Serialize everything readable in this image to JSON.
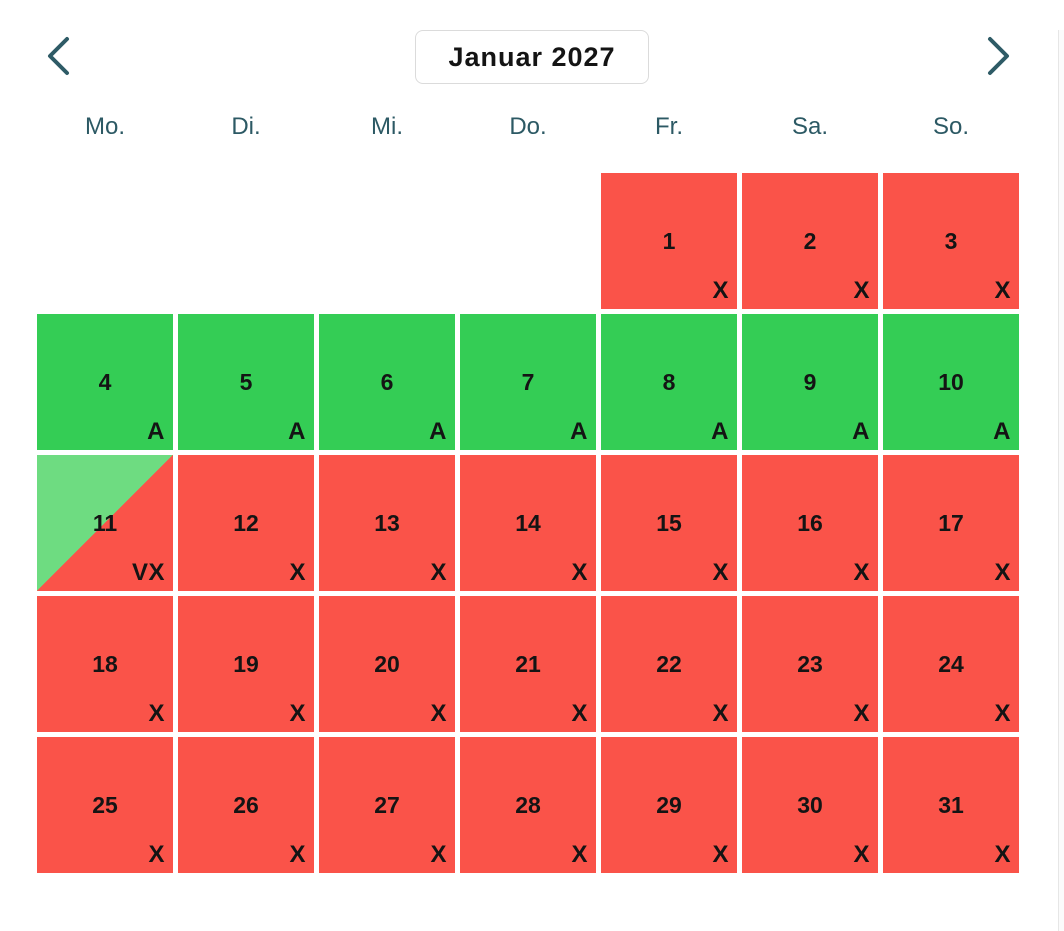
{
  "header": {
    "title": "Januar 2027",
    "prev_icon": "chevron-left",
    "next_icon": "chevron-right"
  },
  "weekdays": [
    "Mo.",
    "Di.",
    "Mi.",
    "Do.",
    "Fr.",
    "Sa.",
    "So."
  ],
  "colors": {
    "available": "#34CD55",
    "unavailable": "#FA5349",
    "partial_available": "#6EDC81",
    "weekday_text": "#2C5964",
    "chevron": "#2E5B66",
    "title_text": "#141414",
    "title_border": "#DBDBDB",
    "day_text": "#141414"
  },
  "calendar": {
    "leading_empty_cells": 4,
    "days": [
      {
        "day": "1",
        "status": "unavailable",
        "tag": "X"
      },
      {
        "day": "2",
        "status": "unavailable",
        "tag": "X"
      },
      {
        "day": "3",
        "status": "unavailable",
        "tag": "X"
      },
      {
        "day": "4",
        "status": "available",
        "tag": "A"
      },
      {
        "day": "5",
        "status": "available",
        "tag": "A"
      },
      {
        "day": "6",
        "status": "available",
        "tag": "A"
      },
      {
        "day": "7",
        "status": "available",
        "tag": "A"
      },
      {
        "day": "8",
        "status": "available",
        "tag": "A"
      },
      {
        "day": "9",
        "status": "available",
        "tag": "A"
      },
      {
        "day": "10",
        "status": "available",
        "tag": "A"
      },
      {
        "day": "11",
        "status": "partial",
        "tag": "VX"
      },
      {
        "day": "12",
        "status": "unavailable",
        "tag": "X"
      },
      {
        "day": "13",
        "status": "unavailable",
        "tag": "X"
      },
      {
        "day": "14",
        "status": "unavailable",
        "tag": "X"
      },
      {
        "day": "15",
        "status": "unavailable",
        "tag": "X"
      },
      {
        "day": "16",
        "status": "unavailable",
        "tag": "X"
      },
      {
        "day": "17",
        "status": "unavailable",
        "tag": "X"
      },
      {
        "day": "18",
        "status": "unavailable",
        "tag": "X"
      },
      {
        "day": "19",
        "status": "unavailable",
        "tag": "X"
      },
      {
        "day": "20",
        "status": "unavailable",
        "tag": "X"
      },
      {
        "day": "21",
        "status": "unavailable",
        "tag": "X"
      },
      {
        "day": "22",
        "status": "unavailable",
        "tag": "X"
      },
      {
        "day": "23",
        "status": "unavailable",
        "tag": "X"
      },
      {
        "day": "24",
        "status": "unavailable",
        "tag": "X"
      },
      {
        "day": "25",
        "status": "unavailable",
        "tag": "X"
      },
      {
        "day": "26",
        "status": "unavailable",
        "tag": "X"
      },
      {
        "day": "27",
        "status": "unavailable",
        "tag": "X"
      },
      {
        "day": "28",
        "status": "unavailable",
        "tag": "X"
      },
      {
        "day": "29",
        "status": "unavailable",
        "tag": "X"
      },
      {
        "day": "30",
        "status": "unavailable",
        "tag": "X"
      },
      {
        "day": "31",
        "status": "unavailable",
        "tag": "X"
      }
    ]
  }
}
